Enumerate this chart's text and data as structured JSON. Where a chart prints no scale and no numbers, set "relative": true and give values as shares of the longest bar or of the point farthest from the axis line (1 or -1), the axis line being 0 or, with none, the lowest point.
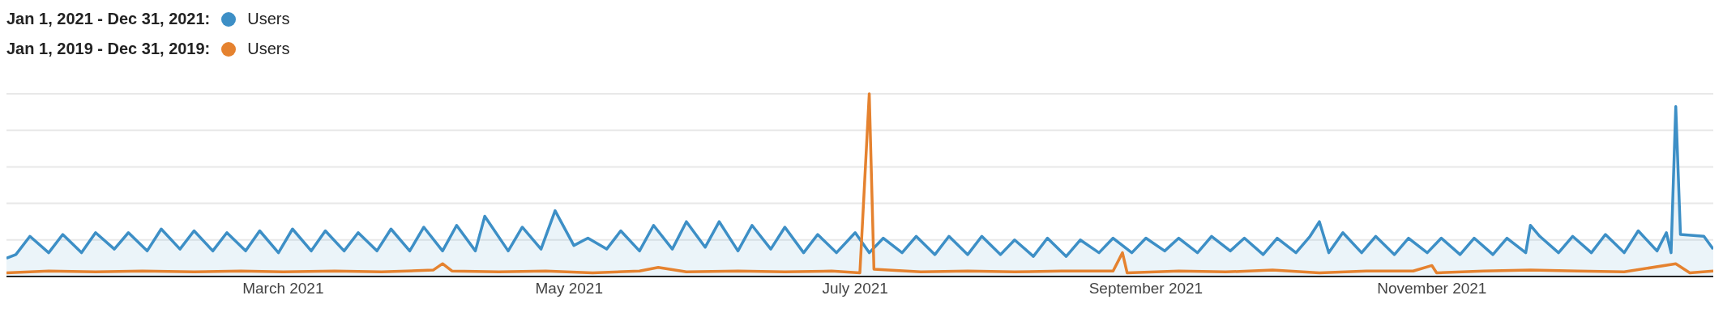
{
  "chart_data": {
    "type": "line",
    "relative": true,
    "grid": "y",
    "legend": "top left",
    "marker": "none",
    "line_style": "solid",
    "annotations": [
      "Jan 1, 2021 - Dec 31, 2021:",
      "Jan 1, 2019 - Dec 31, 2019:"
    ],
    "xlim": [
      "2021-01-01",
      "2021-12-31"
    ],
    "xticks": [
      {
        "value": "2021-03-01",
        "label": "March 2021"
      },
      {
        "value": "2021-05-01",
        "label": "May 2021"
      },
      {
        "value": "2021-07-01",
        "label": "July 2021"
      },
      {
        "value": "2021-09-01",
        "label": "September 2021"
      },
      {
        "value": "2021-11-01",
        "label": "November 2021"
      }
    ],
    "series": [
      {
        "name": "Users",
        "type": "area",
        "color": "#3d8fc6",
        "x": [
          "2021-01-01",
          "2021-01-03",
          "2021-01-06",
          "2021-01-10",
          "2021-01-13",
          "2021-01-17",
          "2021-01-20",
          "2021-01-24",
          "2021-01-27",
          "2021-01-31",
          "2021-02-03",
          "2021-02-07",
          "2021-02-10",
          "2021-02-14",
          "2021-02-17",
          "2021-02-21",
          "2021-02-24",
          "2021-02-28",
          "2021-03-03",
          "2021-03-07",
          "2021-03-10",
          "2021-03-14",
          "2021-03-17",
          "2021-03-21",
          "2021-03-24",
          "2021-03-28",
          "2021-03-31",
          "2021-04-04",
          "2021-04-07",
          "2021-04-11",
          "2021-04-13",
          "2021-04-18",
          "2021-04-21",
          "2021-04-25",
          "2021-04-28",
          "2021-05-02",
          "2021-05-05",
          "2021-05-09",
          "2021-05-12",
          "2021-05-16",
          "2021-05-19",
          "2021-05-23",
          "2021-05-26",
          "2021-05-30",
          "2021-06-02",
          "2021-06-06",
          "2021-06-09",
          "2021-06-13",
          "2021-06-16",
          "2021-06-20",
          "2021-06-23",
          "2021-06-27",
          "2021-07-01",
          "2021-07-04",
          "2021-07-07",
          "2021-07-11",
          "2021-07-14",
          "2021-07-18",
          "2021-07-21",
          "2021-07-25",
          "2021-07-28",
          "2021-08-01",
          "2021-08-04",
          "2021-08-08",
          "2021-08-11",
          "2021-08-15",
          "2021-08-18",
          "2021-08-22",
          "2021-08-25",
          "2021-08-29",
          "2021-09-01",
          "2021-09-05",
          "2021-09-08",
          "2021-09-12",
          "2021-09-15",
          "2021-09-19",
          "2021-09-22",
          "2021-09-26",
          "2021-09-29",
          "2021-10-03",
          "2021-10-06",
          "2021-10-08",
          "2021-10-10",
          "2021-10-13",
          "2021-10-17",
          "2021-10-20",
          "2021-10-24",
          "2021-10-27",
          "2021-10-31",
          "2021-11-03",
          "2021-11-07",
          "2021-11-10",
          "2021-11-14",
          "2021-11-17",
          "2021-11-21",
          "2021-11-22",
          "2021-11-24",
          "2021-11-28",
          "2021-12-01",
          "2021-12-05",
          "2021-12-08",
          "2021-12-12",
          "2021-12-15",
          "2021-12-19",
          "2021-12-21",
          "2021-12-22",
          "2021-12-23",
          "2021-12-24",
          "2021-12-29",
          "2021-12-31"
        ],
        "values": [
          0.1,
          0.12,
          0.22,
          0.13,
          0.23,
          0.13,
          0.24,
          0.15,
          0.24,
          0.14,
          0.26,
          0.15,
          0.25,
          0.14,
          0.24,
          0.14,
          0.25,
          0.13,
          0.26,
          0.14,
          0.25,
          0.14,
          0.24,
          0.14,
          0.26,
          0.14,
          0.27,
          0.14,
          0.28,
          0.14,
          0.33,
          0.14,
          0.27,
          0.15,
          0.36,
          0.17,
          0.21,
          0.15,
          0.25,
          0.14,
          0.28,
          0.15,
          0.3,
          0.16,
          0.3,
          0.14,
          0.28,
          0.15,
          0.27,
          0.13,
          0.23,
          0.13,
          0.24,
          0.13,
          0.21,
          0.13,
          0.22,
          0.12,
          0.22,
          0.12,
          0.22,
          0.12,
          0.2,
          0.11,
          0.21,
          0.11,
          0.2,
          0.13,
          0.21,
          0.13,
          0.21,
          0.14,
          0.21,
          0.13,
          0.22,
          0.14,
          0.21,
          0.12,
          0.21,
          0.13,
          0.22,
          0.3,
          0.13,
          0.24,
          0.13,
          0.22,
          0.12,
          0.21,
          0.13,
          0.21,
          0.12,
          0.21,
          0.12,
          0.21,
          0.13,
          0.28,
          0.22,
          0.13,
          0.22,
          0.13,
          0.23,
          0.13,
          0.25,
          0.14,
          0.24,
          0.13,
          0.93,
          0.23,
          0.22,
          0.15
        ]
      },
      {
        "name": "Users",
        "color": "#e5822f",
        "x": [
          "2021-01-01",
          "2021-01-10",
          "2021-01-20",
          "2021-01-30",
          "2021-02-10",
          "2021-02-20",
          "2021-03-01",
          "2021-03-12",
          "2021-03-22",
          "2021-04-02",
          "2021-04-04",
          "2021-04-06",
          "2021-04-16",
          "2021-04-26",
          "2021-05-06",
          "2021-05-16",
          "2021-05-20",
          "2021-05-26",
          "2021-06-06",
          "2021-06-16",
          "2021-06-26",
          "2021-07-02",
          "2021-07-04",
          "2021-07-05",
          "2021-07-15",
          "2021-07-25",
          "2021-08-04",
          "2021-08-14",
          "2021-08-25",
          "2021-08-27",
          "2021-08-28",
          "2021-09-08",
          "2021-09-18",
          "2021-09-28",
          "2021-10-08",
          "2021-10-18",
          "2021-10-28",
          "2021-11-01",
          "2021-11-02",
          "2021-11-12",
          "2021-11-22",
          "2021-12-02",
          "2021-12-12",
          "2021-12-23",
          "2021-12-26",
          "2021-12-31"
        ],
        "values": [
          0.02,
          0.03,
          0.025,
          0.03,
          0.025,
          0.03,
          0.025,
          0.03,
          0.025,
          0.035,
          0.07,
          0.03,
          0.025,
          0.03,
          0.02,
          0.03,
          0.05,
          0.025,
          0.03,
          0.025,
          0.03,
          0.02,
          1,
          0.04,
          0.025,
          0.03,
          0.025,
          0.03,
          0.03,
          0.13,
          0.02,
          0.03,
          0.025,
          0.035,
          0.02,
          0.03,
          0.03,
          0.06,
          0.02,
          0.03,
          0.035,
          0.03,
          0.025,
          0.07,
          0.02,
          0.03
        ]
      }
    ]
  }
}
